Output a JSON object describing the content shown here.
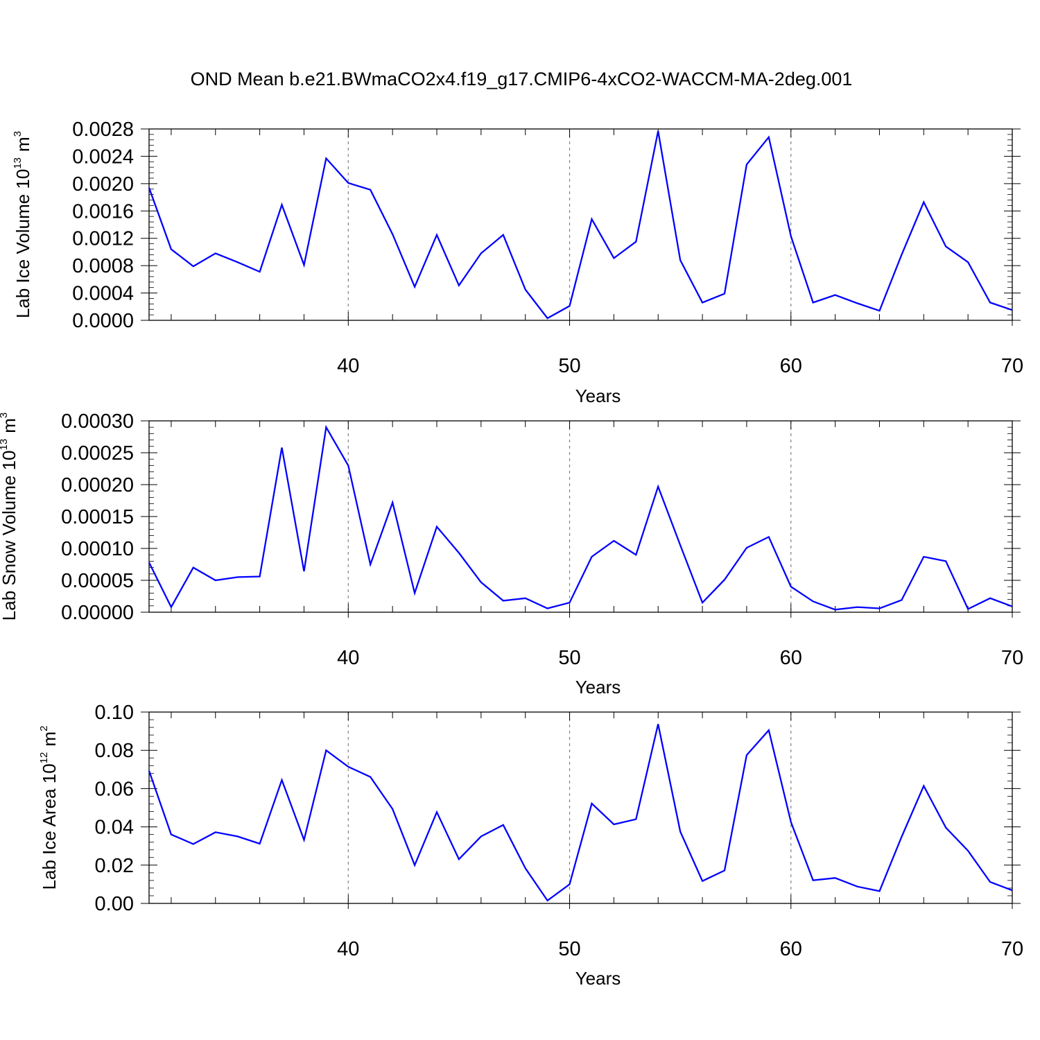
{
  "title": "OND Mean b.e21.BWmaCO2x4.f19_g17.CMIP6-4xCO2-WACCM-MA-2deg.001",
  "colors": {
    "series": "#0000ff",
    "axis": "#000000",
    "grid": "#808080"
  },
  "chart_data": [
    {
      "type": "line",
      "title": "OND Mean b.e21.BWmaCO2x4.f19_g17.CMIP6-4xCO2-WACCM-MA-2deg.001",
      "xlabel": "Years",
      "ylabel": {
        "main": "Lab Ice Volume 10",
        "sup": "13",
        "unit": "m",
        "unit_sup": "3"
      },
      "xlim": [
        31,
        70
      ],
      "ylim": [
        0,
        0.0028
      ],
      "xticks": [
        40,
        50,
        60,
        70
      ],
      "xtick_labels": [
        "40",
        "50",
        "60",
        "70"
      ],
      "yticks": [
        0,
        0.0004,
        0.0008,
        0.0012,
        0.0016,
        0.002,
        0.0024,
        0.0028
      ],
      "ytick_labels": [
        "0.0000",
        "0.0004",
        "0.0008",
        "0.0012",
        "0.0016",
        "0.0020",
        "0.0024",
        "0.0028"
      ],
      "grid_x": [
        40,
        50,
        60
      ],
      "series": [
        {
          "name": "Lab Ice Volume",
          "x": [
            31,
            32,
            33,
            34,
            35,
            36,
            37,
            38,
            39,
            40,
            41,
            42,
            43,
            44,
            45,
            46,
            47,
            48,
            49,
            50,
            51,
            52,
            53,
            54,
            55,
            56,
            57,
            58,
            59,
            60,
            61,
            62,
            63,
            64,
            65,
            66,
            67,
            68,
            69,
            70
          ],
          "values": [
            0.00194,
            0.00104,
            0.00079,
            0.00098,
            0.00085,
            0.00071,
            0.00169,
            0.00081,
            0.00237,
            0.00201,
            0.00191,
            0.00126,
            0.00049,
            0.00125,
            0.00051,
            0.00098,
            0.00125,
            0.00045,
            3e-05,
            0.00021,
            0.00148,
            0.00091,
            0.00115,
            0.00277,
            0.00088,
            0.00026,
            0.00039,
            0.00228,
            0.00268,
            0.00123,
            0.00026,
            0.00037,
            0.00025,
            0.00014,
            0.00096,
            0.00173,
            0.00108,
            0.00085,
            0.00026,
            0.00015
          ]
        }
      ]
    },
    {
      "type": "line",
      "xlabel": "Years",
      "ylabel": {
        "main": "Lab Snow Volume 10",
        "sup": "13",
        "unit": "m",
        "unit_sup": "3"
      },
      "xlim": [
        31,
        70
      ],
      "ylim": [
        0,
        0.0003
      ],
      "xticks": [
        40,
        50,
        60,
        70
      ],
      "xtick_labels": [
        "40",
        "50",
        "60",
        "70"
      ],
      "yticks": [
        0,
        5e-05,
        0.0001,
        0.00015,
        0.0002,
        0.00025,
        0.0003
      ],
      "ytick_labels": [
        "0.00000",
        "0.00005",
        "0.00010",
        "0.00015",
        "0.00020",
        "0.00025",
        "0.00030"
      ],
      "grid_x": [
        40,
        50,
        60
      ],
      "series": [
        {
          "name": "Lab Snow Volume",
          "x": [
            31,
            32,
            33,
            34,
            35,
            36,
            37,
            38,
            39,
            40,
            41,
            42,
            43,
            44,
            45,
            46,
            47,
            48,
            49,
            50,
            51,
            52,
            53,
            54,
            55,
            56,
            57,
            58,
            59,
            60,
            61,
            62,
            63,
            64,
            65,
            66,
            67,
            68,
            69,
            70
          ],
          "values": [
            7.8e-05,
            8e-06,
            7e-05,
            5e-05,
            5.5e-05,
            5.6e-05,
            0.000258,
            6.4e-05,
            0.00029,
            0.00023,
            7.5e-05,
            0.000172,
            3e-05,
            0.000134,
            9.3e-05,
            4.7e-05,
            1.8e-05,
            2.2e-05,
            6e-06,
            1.5e-05,
            8.7e-05,
            0.000112,
            9e-05,
            0.000197,
            0.000105,
            1.5e-05,
            5.1e-05,
            0.000101,
            0.000118,
            4e-05,
            1.7e-05,
            4e-06,
            8e-06,
            6e-06,
            1.9e-05,
            8.7e-05,
            8e-05,
            5e-06,
            2.2e-05,
            9e-06
          ]
        }
      ]
    },
    {
      "type": "line",
      "xlabel": "Years",
      "ylabel": {
        "main": "Lab Ice Area 10",
        "sup": "12",
        "unit": "m",
        "unit_sup": "2"
      },
      "xlim": [
        31,
        70
      ],
      "ylim": [
        0,
        0.1
      ],
      "xticks": [
        40,
        50,
        60,
        70
      ],
      "xtick_labels": [
        "40",
        "50",
        "60",
        "70"
      ],
      "yticks": [
        0,
        0.02,
        0.04,
        0.06,
        0.08,
        0.1
      ],
      "ytick_labels": [
        "0.00",
        "0.02",
        "0.04",
        "0.06",
        "0.08",
        "0.10"
      ],
      "grid_x": [
        40,
        50,
        60
      ],
      "series": [
        {
          "name": "Lab Ice Area",
          "x": [
            31,
            32,
            33,
            34,
            35,
            36,
            37,
            38,
            39,
            40,
            41,
            42,
            43,
            44,
            45,
            46,
            47,
            48,
            49,
            50,
            51,
            52,
            53,
            54,
            55,
            56,
            57,
            58,
            59,
            60,
            61,
            62,
            63,
            64,
            65,
            66,
            67,
            68,
            69,
            70
          ],
          "values": [
            0.0693,
            0.036,
            0.031,
            0.0372,
            0.035,
            0.0312,
            0.0645,
            0.0332,
            0.08,
            0.0714,
            0.0661,
            0.0493,
            0.02,
            0.0477,
            0.0231,
            0.035,
            0.041,
            0.0184,
            0.0015,
            0.01,
            0.0522,
            0.0413,
            0.044,
            0.0937,
            0.0375,
            0.0117,
            0.0172,
            0.0775,
            0.0905,
            0.0425,
            0.0121,
            0.0133,
            0.0088,
            0.0064,
            0.0348,
            0.0614,
            0.0396,
            0.0275,
            0.0112,
            0.0068
          ]
        }
      ]
    }
  ]
}
